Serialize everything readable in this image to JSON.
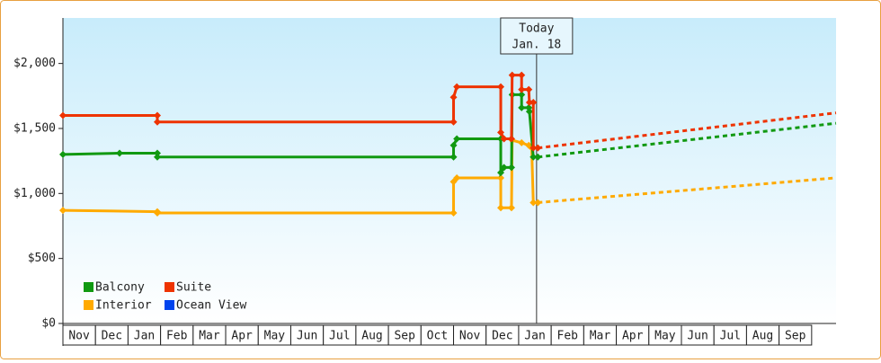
{
  "chart_data": {
    "type": "line",
    "categories": [
      "Nov",
      "Dec",
      "Jan",
      "Feb",
      "Mar",
      "Apr",
      "May",
      "Jun",
      "Jul",
      "Aug",
      "Sep",
      "Oct",
      "Nov",
      "Dec",
      "Jan",
      "Feb",
      "Mar",
      "Apr",
      "May",
      "Jun",
      "Jul",
      "Aug",
      "Sep"
    ],
    "xlim": [
      0,
      23.75
    ],
    "ylim": [
      0,
      2350
    ],
    "yticks": [
      {
        "value": 0,
        "label": "$0"
      },
      {
        "value": 500,
        "label": "$500"
      },
      {
        "value": 1000,
        "label": "$1,000"
      },
      {
        "value": 1500,
        "label": "$1,500"
      },
      {
        "value": 2000,
        "label": "$2,000"
      }
    ],
    "annotation": {
      "x": 14.55,
      "lines": [
        "Today",
        "Jan. 18"
      ]
    },
    "series": [
      {
        "name": "Balcony",
        "color": "#119911",
        "x": [
          0,
          1.74,
          2.9,
          2.9,
          12.0,
          12.0,
          12.1,
          13.45,
          13.45,
          13.55,
          13.78,
          13.8,
          14.09,
          14.09,
          14.31,
          14.33,
          14.45,
          14.59
        ],
        "values": [
          1300,
          1310,
          1310,
          1280,
          1280,
          1370,
          1420,
          1420,
          1160,
          1200,
          1200,
          1760,
          1760,
          1660,
          1660,
          1630,
          1280,
          1280
        ],
        "forecast": {
          "x": [
            14.59,
            23.75
          ],
          "values": [
            1280,
            1540
          ]
        }
      },
      {
        "name": "Suite",
        "color": "#ee3300",
        "x": [
          0,
          2.9,
          2.9,
          12.0,
          12.0,
          12.1,
          13.45,
          13.45,
          13.55,
          13.78,
          13.8,
          14.09,
          14.09,
          14.31,
          14.33,
          14.45,
          14.45,
          14.59
        ],
        "values": [
          1600,
          1600,
          1550,
          1550,
          1740,
          1820,
          1820,
          1470,
          1420,
          1420,
          1910,
          1910,
          1800,
          1800,
          1700,
          1700,
          1350,
          1350
        ],
        "forecast": {
          "x": [
            14.59,
            23.75
          ],
          "values": [
            1350,
            1620
          ]
        }
      },
      {
        "name": "Interior",
        "color": "#ffaa00",
        "x": [
          0,
          2.9,
          2.9,
          12.0,
          12.0,
          12.1,
          13.45,
          13.45,
          13.78,
          13.8,
          14.09,
          14.31,
          14.4,
          14.45,
          14.59
        ],
        "values": [
          870,
          860,
          850,
          850,
          1090,
          1120,
          1120,
          890,
          890,
          1410,
          1390,
          1370,
          1350,
          930,
          930
        ],
        "forecast": {
          "x": [
            14.59,
            23.75
          ],
          "values": [
            930,
            1120
          ]
        }
      },
      {
        "name": "Ocean View",
        "color": "#0044ee",
        "x": [],
        "values": []
      }
    ]
  }
}
